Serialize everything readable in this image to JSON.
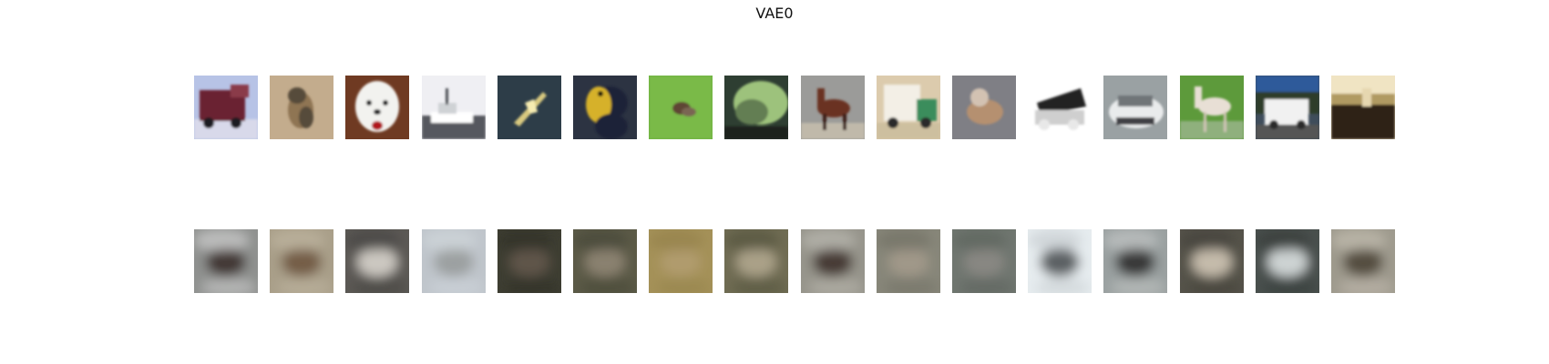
{
  "title": "VAE0",
  "rows": [
    {
      "id": "original",
      "images": [
        {
          "scene": "fire-truck",
          "colors": [
            "#b7c3e6",
            "#6b2132",
            "#d8d9ea"
          ]
        },
        {
          "scene": "cat",
          "colors": [
            "#c3ac8d",
            "#574b3b",
            "#8f7453"
          ]
        },
        {
          "scene": "dog",
          "colors": [
            "#6f3a22",
            "#f2f2ef",
            "#b1161f"
          ]
        },
        {
          "scene": "boat",
          "colors": [
            "#efeff3",
            "#d6d8d8",
            "#56595f"
          ]
        },
        {
          "scene": "airplane",
          "colors": [
            "#2d3d48",
            "#d8c97f",
            "#f6ecb1"
          ]
        },
        {
          "scene": "bird",
          "colors": [
            "#2c3342",
            "#d6b12b",
            "#1c2438"
          ]
        },
        {
          "scene": "bird-grass",
          "colors": [
            "#68b13e",
            "#5f4534",
            "#86c04e"
          ]
        },
        {
          "scene": "frog",
          "colors": [
            "#2e3e32",
            "#9dc27b",
            "#637e52"
          ]
        },
        {
          "scene": "horse",
          "colors": [
            "#9b9b99",
            "#6b3324",
            "#c0b9aa"
          ]
        },
        {
          "scene": "truck",
          "colors": [
            "#dccbad",
            "#3a8d5c",
            "#8f8f7e"
          ]
        },
        {
          "scene": "dog-gray",
          "colors": [
            "#7f7f85",
            "#b5906f",
            "#d3c2b2"
          ]
        },
        {
          "scene": "dump-truck",
          "colors": [
            "#ffffff",
            "#e8e8e8",
            "#212121"
          ]
        },
        {
          "scene": "car",
          "colors": [
            "#9aa1a3",
            "#e9ebec",
            "#3f4144"
          ]
        },
        {
          "scene": "horse-white",
          "colors": [
            "#5d9a3b",
            "#e8dfd5",
            "#8fb07d"
          ]
        },
        {
          "scene": "truck-white",
          "colors": [
            "#3f4d5b",
            "#f1f1f1",
            "#2a2a2a"
          ]
        },
        {
          "scene": "blurry-room",
          "colors": [
            "#f0e4c3",
            "#b09a62",
            "#2d2419"
          ]
        }
      ]
    },
    {
      "id": "reconstruction",
      "images": [
        {
          "scene": "blur",
          "colors": [
            "#8f918f",
            "#3b2f2c",
            "#e7e7e7"
          ]
        },
        {
          "scene": "blur",
          "colors": [
            "#a99f89",
            "#6f5540",
            "#c7bea9"
          ]
        },
        {
          "scene": "blur",
          "colors": [
            "#5b5954",
            "#d8d4cd",
            "#403f3c"
          ]
        },
        {
          "scene": "blur",
          "colors": [
            "#bfc5cb",
            "#989b9c",
            "#d8dde2"
          ]
        },
        {
          "scene": "blur",
          "colors": [
            "#3d3d31",
            "#62584c",
            "#2d2d25"
          ]
        },
        {
          "scene": "blur",
          "colors": [
            "#5b5a47",
            "#8f8574",
            "#3f3f31"
          ]
        },
        {
          "scene": "blur",
          "colors": [
            "#a49158",
            "#b19c70",
            "#8f7c48"
          ]
        },
        {
          "scene": "blur",
          "colors": [
            "#6f6c53",
            "#b0a78e",
            "#4b4a38"
          ]
        },
        {
          "scene": "blur",
          "colors": [
            "#96948b",
            "#3d312a",
            "#c7c6bf"
          ]
        },
        {
          "scene": "blur",
          "colors": [
            "#878679",
            "#a39a8b",
            "#6b6a5f"
          ]
        },
        {
          "scene": "blur",
          "colors": [
            "#6f766f",
            "#8b8984",
            "#585d58"
          ]
        },
        {
          "scene": "blur",
          "colors": [
            "#e6ecef",
            "#4c5154",
            "#bbc2c6"
          ]
        },
        {
          "scene": "blur",
          "colors": [
            "#9aa0a0",
            "#2c2e2e",
            "#d1d4d3"
          ]
        },
        {
          "scene": "blur",
          "colors": [
            "#55524a",
            "#d1c7b6",
            "#3b3935"
          ]
        },
        {
          "scene": "blur",
          "colors": [
            "#49504d",
            "#dce1e2",
            "#2f3433"
          ]
        },
        {
          "scene": "blur",
          "colors": [
            "#9e9a8d",
            "#4d4538",
            "#cfc9bd"
          ]
        }
      ]
    }
  ]
}
